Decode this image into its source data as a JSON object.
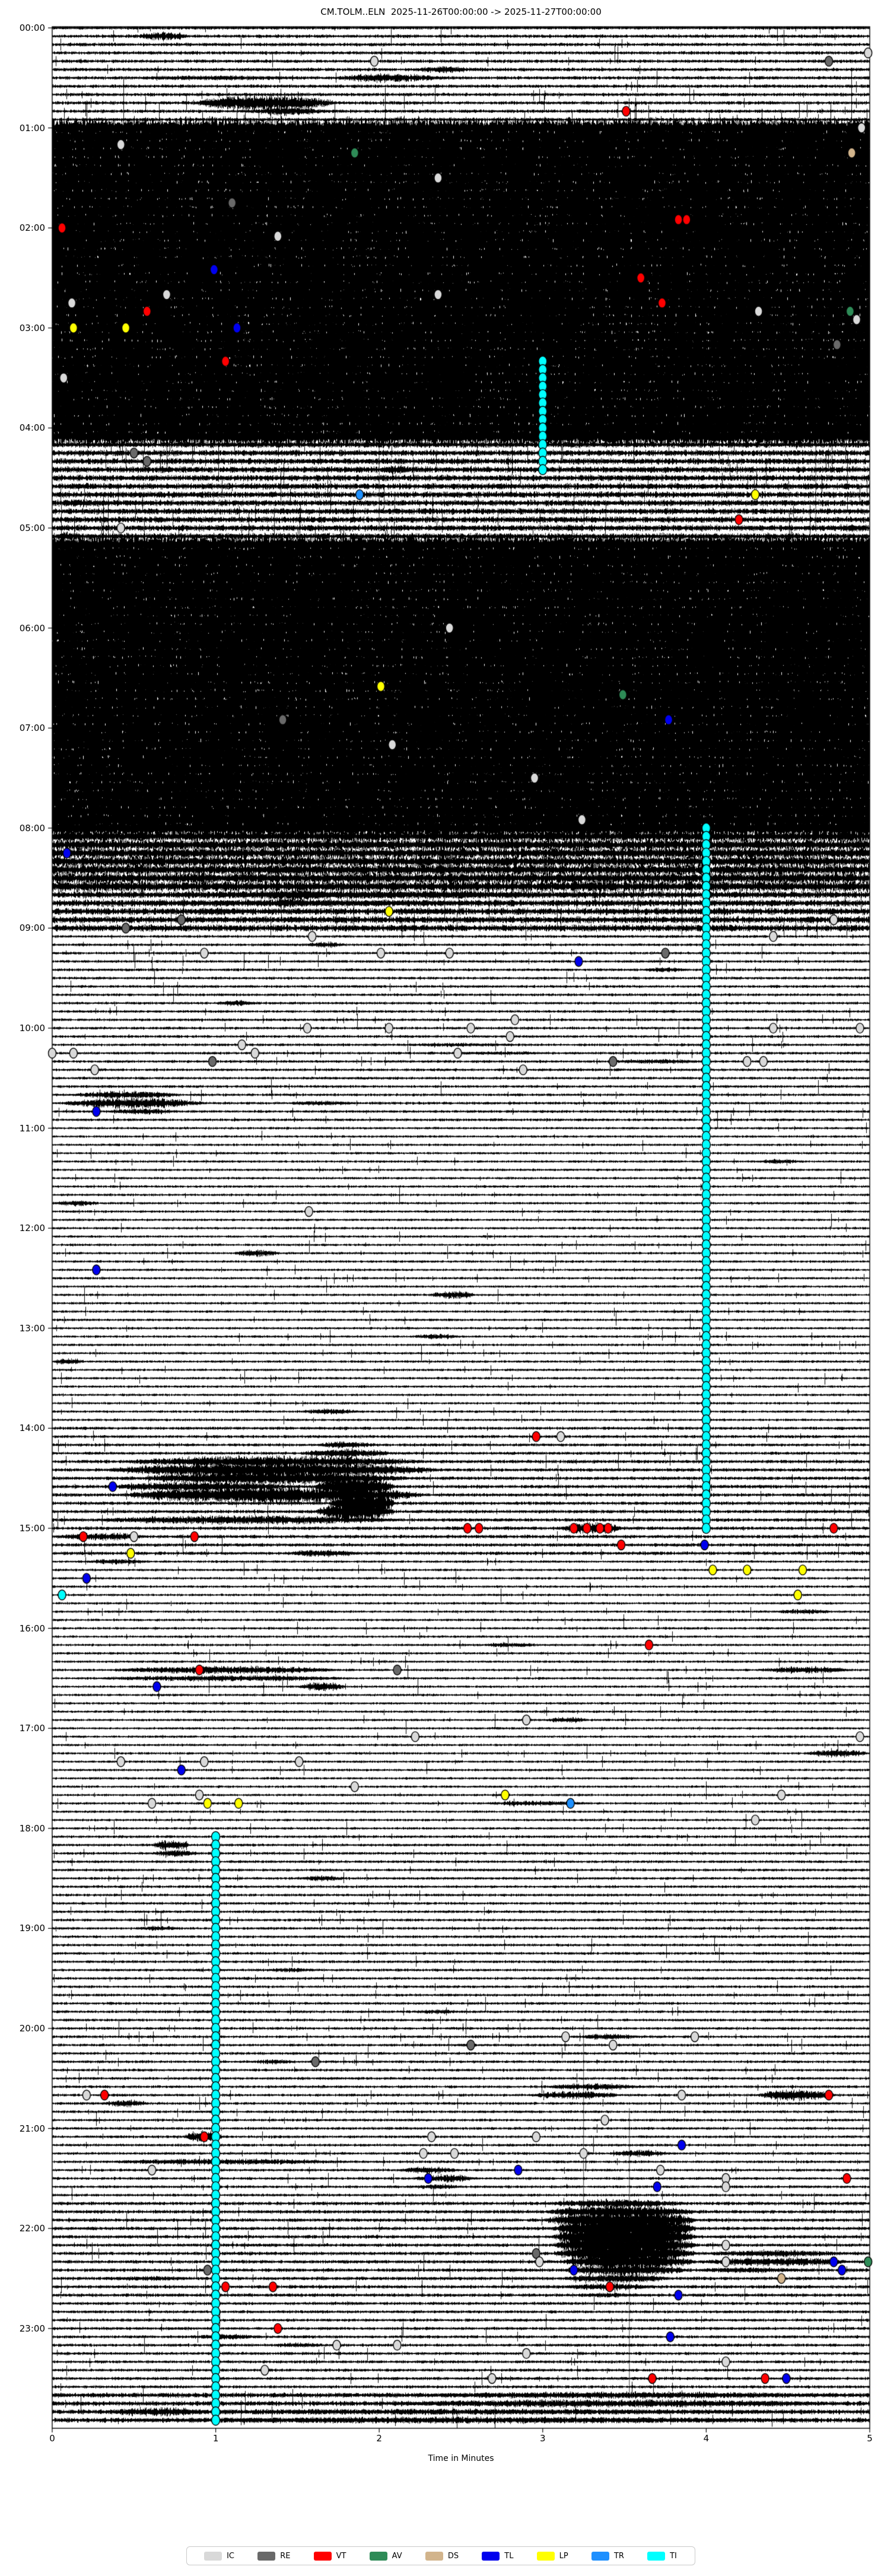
{
  "title": "CM.TOLM..ELN  2025-11-26T00:00:00 -> 2025-11-27T00:00:00",
  "xlabel": "Time in Minutes",
  "legend": [
    {
      "code": "IC",
      "color": "#d9d9d9"
    },
    {
      "code": "RE",
      "color": "#696969"
    },
    {
      "code": "VT",
      "color": "#ff0000"
    },
    {
      "code": "AV",
      "color": "#2e8b57"
    },
    {
      "code": "DS",
      "color": "#d2b48c"
    },
    {
      "code": "TL",
      "color": "#0000ee"
    },
    {
      "code": "LP",
      "color": "#ffff00"
    },
    {
      "code": "TR",
      "color": "#1e90ff"
    },
    {
      "code": "TI",
      "color": "#00ffff"
    }
  ],
  "chart_data": {
    "type": "helicorder",
    "station": "CM.TOLM..ELN",
    "time_start": "2025-11-26T00:00:00",
    "time_end": "2025-11-27T00:00:00",
    "minutes_per_line": 5,
    "lines_per_hour": 12,
    "total_lines": 288,
    "x_axis": {
      "label": "Time in Minutes",
      "min": 0,
      "max": 5,
      "ticks": [
        0,
        1,
        2,
        3,
        4,
        5
      ]
    },
    "y_axis": {
      "tick_labels": [
        "00:00",
        "01:00",
        "02:00",
        "03:00",
        "04:00",
        "05:00",
        "06:00",
        "07:00",
        "08:00",
        "09:00",
        "10:00",
        "11:00",
        "12:00",
        "13:00",
        "14:00",
        "15:00",
        "16:00",
        "17:00",
        "18:00",
        "19:00",
        "20:00",
        "21:00",
        "22:00",
        "23:00"
      ]
    },
    "trace_color": "#000000",
    "amp_segments": [
      [
        0,
        11,
        2.5
      ],
      [
        12,
        49,
        15
      ],
      [
        50,
        61,
        4.5
      ],
      [
        62,
        96,
        15
      ],
      [
        97,
        103,
        8
      ],
      [
        104,
        108,
        5
      ],
      [
        109,
        131,
        2
      ],
      [
        132,
        167,
        1.8
      ],
      [
        168,
        171,
        2.2
      ],
      [
        172,
        183,
        2.5
      ],
      [
        184,
        216,
        1.8
      ],
      [
        217,
        260,
        2
      ],
      [
        261,
        272,
        2.5
      ],
      [
        273,
        283,
        2.2
      ],
      [
        284,
        287,
        3.5
      ]
    ],
    "bursts": [
      [
        1,
        0.5,
        0.85,
        9
      ],
      [
        5,
        2.2,
        2.6,
        7
      ],
      [
        6,
        0.4,
        1.6,
        5
      ],
      [
        6,
        1.7,
        2.4,
        9
      ],
      [
        9,
        0.85,
        1.75,
        16
      ],
      [
        10,
        1.2,
        1.7,
        9
      ],
      [
        53,
        2.0,
        2.2,
        10
      ],
      [
        55,
        0.0,
        0.3,
        6
      ],
      [
        57,
        0.0,
        0.4,
        8
      ],
      [
        58,
        1.3,
        1.6,
        6
      ],
      [
        60,
        4.8,
        5.0,
        8
      ],
      [
        61,
        0.0,
        0.2,
        9
      ],
      [
        104,
        0.3,
        3.6,
        9
      ],
      [
        104,
        1.3,
        1.7,
        13
      ],
      [
        105,
        0.2,
        3.0,
        7
      ],
      [
        105,
        1.3,
        1.6,
        10
      ],
      [
        106,
        0.85,
        1.15,
        8
      ],
      [
        106,
        2.0,
        2.6,
        6
      ],
      [
        107,
        1.4,
        1.55,
        7
      ],
      [
        110,
        1.55,
        1.8,
        6
      ],
      [
        113,
        3.6,
        3.9,
        5
      ],
      [
        117,
        1.0,
        1.25,
        6
      ],
      [
        122,
        2.1,
        2.9,
        4
      ],
      [
        123,
        2.4,
        3.1,
        4
      ],
      [
        124,
        3.4,
        4.0,
        5
      ],
      [
        128,
        0.1,
        0.8,
        8
      ],
      [
        129,
        0.05,
        0.95,
        11
      ],
      [
        129,
        1.4,
        1.9,
        5
      ],
      [
        130,
        0.3,
        0.8,
        6
      ],
      [
        136,
        4.3,
        4.6,
        5
      ],
      [
        141,
        0.0,
        0.3,
        6
      ],
      [
        147,
        1.1,
        1.4,
        7
      ],
      [
        152,
        2.3,
        2.6,
        8
      ],
      [
        157,
        2.2,
        2.5,
        6
      ],
      [
        160,
        0.0,
        0.2,
        7
      ],
      [
        166,
        1.5,
        1.9,
        6
      ],
      [
        170,
        1.6,
        2.0,
        7
      ],
      [
        171,
        1.5,
        2.1,
        9
      ],
      [
        172,
        0.4,
        2.3,
        12
      ],
      [
        173,
        0.3,
        2.4,
        16
      ],
      [
        174,
        0.5,
        2.2,
        14
      ],
      [
        175,
        0.3,
        1.5,
        10
      ],
      [
        175,
        1.6,
        2.1,
        22
      ],
      [
        176,
        0.4,
        2.3,
        18
      ],
      [
        177,
        1.7,
        2.1,
        28
      ],
      [
        178,
        1.6,
        2.1,
        20
      ],
      [
        179,
        0.2,
        2.2,
        9
      ],
      [
        180,
        3.1,
        3.5,
        12
      ],
      [
        181,
        0.0,
        0.6,
        8
      ],
      [
        183,
        1.4,
        1.9,
        7
      ],
      [
        184,
        0.2,
        0.6,
        6
      ],
      [
        190,
        4.4,
        4.8,
        5
      ],
      [
        194,
        2.6,
        3.0,
        5
      ],
      [
        197,
        0.3,
        1.8,
        8
      ],
      [
        197,
        4.3,
        4.9,
        7
      ],
      [
        198,
        0.2,
        1.9,
        6
      ],
      [
        199,
        1.5,
        1.8,
        9
      ],
      [
        203,
        3.0,
        3.3,
        6
      ],
      [
        207,
        4.6,
        5.0,
        8
      ],
      [
        213,
        2.6,
        3.3,
        5
      ],
      [
        218,
        0.6,
        0.85,
        10
      ],
      [
        219,
        0.6,
        0.9,
        7
      ],
      [
        222,
        1.5,
        1.8,
        6
      ],
      [
        228,
        0.5,
        0.8,
        5
      ],
      [
        233,
        1.3,
        1.6,
        5
      ],
      [
        238,
        2.2,
        2.5,
        5
      ],
      [
        241,
        3.2,
        3.6,
        6
      ],
      [
        244,
        1.2,
        1.5,
        5
      ],
      [
        247,
        3.0,
        3.6,
        7
      ],
      [
        248,
        2.9,
        3.5,
        8
      ],
      [
        248,
        4.3,
        4.8,
        11
      ],
      [
        249,
        0.3,
        0.6,
        7
      ],
      [
        253,
        0.8,
        1.05,
        12
      ],
      [
        255,
        3.4,
        3.8,
        7
      ],
      [
        256,
        0.2,
        1.9,
        6
      ],
      [
        257,
        2.1,
        2.5,
        7
      ],
      [
        258,
        2.2,
        2.6,
        8
      ],
      [
        259,
        2.2,
        2.5,
        6
      ],
      [
        261,
        3.0,
        3.9,
        9
      ],
      [
        262,
        3.0,
        3.95,
        14
      ],
      [
        263,
        3.0,
        3.95,
        20
      ],
      [
        264,
        3.05,
        3.95,
        24
      ],
      [
        265,
        3.05,
        3.95,
        24
      ],
      [
        266,
        3.05,
        3.95,
        22
      ],
      [
        267,
        3.05,
        3.95,
        20
      ],
      [
        267,
        3.95,
        4.9,
        7
      ],
      [
        268,
        3.1,
        3.95,
        16
      ],
      [
        268,
        3.95,
        4.9,
        9
      ],
      [
        269,
        3.1,
        3.9,
        12
      ],
      [
        269,
        3.9,
        4.6,
        6
      ],
      [
        270,
        3.1,
        3.8,
        9
      ],
      [
        270,
        0.3,
        0.9,
        5
      ],
      [
        271,
        3.1,
        3.7,
        7
      ],
      [
        272,
        3.2,
        3.6,
        5
      ],
      [
        277,
        0.8,
        1.3,
        6
      ],
      [
        278,
        1.3,
        1.7,
        5
      ],
      [
        284,
        2.0,
        5.0,
        7
      ],
      [
        285,
        1.8,
        5.0,
        8
      ],
      [
        286,
        0.3,
        1.0,
        9
      ],
      [
        286,
        0.0,
        5.0,
        6
      ],
      [
        287,
        0.0,
        5.0,
        7
      ]
    ],
    "vlines": [
      [
        2.0,
        46,
        60
      ],
      [
        4.67,
        44,
        60
      ],
      [
        3.25,
        240,
        262
      ],
      [
        3.53,
        250,
        284
      ]
    ],
    "chains": [
      {
        "code": "TI",
        "minute": 3.0,
        "from_line": 40,
        "to_line": 53
      },
      {
        "code": "TI",
        "minute": 4.0,
        "from_line": 96,
        "to_line": 180
      },
      {
        "code": "TI",
        "minute": 1.0,
        "from_line": 217,
        "to_line": 287
      }
    ],
    "markers": [
      [
        "IC",
        3,
        4.99
      ],
      [
        "IC",
        4,
        1.97
      ],
      [
        "RE",
        4,
        4.75
      ],
      [
        "VT",
        10,
        3.51
      ],
      [
        "IC",
        12,
        4.95
      ],
      [
        "IC",
        14,
        0.42
      ],
      [
        "AV",
        15,
        1.85
      ],
      [
        "DS",
        15,
        4.89
      ],
      [
        "IC",
        18,
        2.36
      ],
      [
        "RE",
        21,
        1.1
      ],
      [
        "VT",
        23,
        3.83
      ],
      [
        "VT",
        23,
        3.88
      ],
      [
        "VT",
        24,
        0.06
      ],
      [
        "IC",
        25,
        1.38
      ],
      [
        "TL",
        29,
        0.99
      ],
      [
        "VT",
        30,
        3.6
      ],
      [
        "IC",
        32,
        0.7
      ],
      [
        "IC",
        32,
        2.36
      ],
      [
        "IC",
        33,
        0.12
      ],
      [
        "VT",
        33,
        3.73
      ],
      [
        "VT",
        34,
        0.58
      ],
      [
        "IC",
        34,
        4.32
      ],
      [
        "AV",
        34,
        4.88
      ],
      [
        "IC",
        35,
        4.92
      ],
      [
        "LP",
        36,
        0.13
      ],
      [
        "LP",
        36,
        0.45
      ],
      [
        "TL",
        36,
        1.13
      ],
      [
        "RE",
        38,
        4.8
      ],
      [
        "VT",
        40,
        1.06
      ],
      [
        "IC",
        42,
        0.07
      ],
      [
        "RE",
        51,
        0.5
      ],
      [
        "RE",
        52,
        0.58
      ],
      [
        "TR",
        56,
        1.88
      ],
      [
        "LP",
        56,
        4.3
      ],
      [
        "VT",
        59,
        4.2
      ],
      [
        "IC",
        60,
        0.42
      ],
      [
        "IC",
        72,
        2.43
      ],
      [
        "LP",
        79,
        2.01
      ],
      [
        "AV",
        80,
        3.49
      ],
      [
        "RE",
        83,
        1.41
      ],
      [
        "TL",
        83,
        3.77
      ],
      [
        "IC",
        86,
        2.08
      ],
      [
        "IC",
        90,
        2.95
      ],
      [
        "IC",
        95,
        3.24
      ],
      [
        "TL",
        99,
        0.09
      ],
      [
        "LP",
        106,
        2.06
      ],
      [
        "RE",
        107,
        0.79
      ],
      [
        "IC",
        107,
        4.78
      ],
      [
        "RE",
        108,
        0.45
      ],
      [
        "IC",
        109,
        1.59
      ],
      [
        "IC",
        109,
        4.41
      ],
      [
        "IC",
        111,
        0.93
      ],
      [
        "IC",
        111,
        2.01
      ],
      [
        "IC",
        111,
        2.43
      ],
      [
        "RE",
        111,
        3.75
      ],
      [
        "TL",
        112,
        3.22
      ],
      [
        "IC",
        119,
        2.83
      ],
      [
        "IC",
        120,
        1.56
      ],
      [
        "IC",
        120,
        2.06
      ],
      [
        "IC",
        120,
        2.56
      ],
      [
        "IC",
        120,
        4.41
      ],
      [
        "IC",
        120,
        4.94
      ],
      [
        "IC",
        121,
        2.8
      ],
      [
        "IC",
        122,
        1.16
      ],
      [
        "IC",
        123,
        0.0
      ],
      [
        "IC",
        123,
        0.13
      ],
      [
        "IC",
        123,
        1.24
      ],
      [
        "IC",
        123,
        2.48
      ],
      [
        "RE",
        124,
        0.98
      ],
      [
        "RE",
        124,
        3.43
      ],
      [
        "IC",
        124,
        4.25
      ],
      [
        "IC",
        124,
        4.35
      ],
      [
        "IC",
        125,
        0.26
      ],
      [
        "IC",
        125,
        2.88
      ],
      [
        "TL",
        130,
        0.27
      ],
      [
        "IC",
        142,
        1.57
      ],
      [
        "TL",
        149,
        0.27
      ],
      [
        "VT",
        169,
        2.96
      ],
      [
        "IC",
        169,
        3.11
      ],
      [
        "TL",
        175,
        0.37
      ],
      [
        "VT",
        180,
        2.54
      ],
      [
        "VT",
        180,
        2.61
      ],
      [
        "VT",
        180,
        3.19
      ],
      [
        "VT",
        180,
        3.27
      ],
      [
        "VT",
        180,
        3.35
      ],
      [
        "VT",
        180,
        3.4
      ],
      [
        "VT",
        180,
        4.78
      ],
      [
        "VT",
        181,
        0.19
      ],
      [
        "IC",
        181,
        0.5
      ],
      [
        "VT",
        181,
        0.87
      ],
      [
        "VT",
        182,
        3.48
      ],
      [
        "TL",
        182,
        3.99
      ],
      [
        "LP",
        183,
        0.48
      ],
      [
        "LP",
        185,
        4.04
      ],
      [
        "LP",
        185,
        4.25
      ],
      [
        "LP",
        185,
        4.59
      ],
      [
        "TL",
        186,
        0.21
      ],
      [
        "TI",
        188,
        0.06
      ],
      [
        "LP",
        188,
        4.56
      ],
      [
        "VT",
        194,
        3.65
      ],
      [
        "VT",
        197,
        0.9
      ],
      [
        "RE",
        197,
        2.11
      ],
      [
        "TL",
        199,
        0.64
      ],
      [
        "IC",
        203,
        2.9
      ],
      [
        "IC",
        205,
        2.22
      ],
      [
        "IC",
        205,
        4.94
      ],
      [
        "IC",
        208,
        0.42
      ],
      [
        "IC",
        208,
        0.93
      ],
      [
        "IC",
        208,
        1.51
      ],
      [
        "TL",
        209,
        0.79
      ],
      [
        "IC",
        211,
        1.85
      ],
      [
        "IC",
        212,
        0.9
      ],
      [
        "LP",
        212,
        2.77
      ],
      [
        "IC",
        212,
        4.46
      ],
      [
        "IC",
        213,
        0.61
      ],
      [
        "LP",
        213,
        0.95
      ],
      [
        "LP",
        213,
        1.14
      ],
      [
        "TR",
        213,
        3.17
      ],
      [
        "IC",
        215,
        4.3
      ],
      [
        "IC",
        241,
        3.14
      ],
      [
        "IC",
        241,
        3.93
      ],
      [
        "RE",
        242,
        2.56
      ],
      [
        "IC",
        242,
        3.43
      ],
      [
        "RE",
        244,
        1.61
      ],
      [
        "IC",
        248,
        0.21
      ],
      [
        "VT",
        248,
        0.32
      ],
      [
        "IC",
        248,
        3.85
      ],
      [
        "VT",
        248,
        4.75
      ],
      [
        "IC",
        251,
        3.38
      ],
      [
        "VT",
        253,
        0.93
      ],
      [
        "IC",
        253,
        2.32
      ],
      [
        "IC",
        253,
        2.96
      ],
      [
        "TL",
        254,
        3.85
      ],
      [
        "IC",
        255,
        2.27
      ],
      [
        "IC",
        255,
        2.46
      ],
      [
        "IC",
        255,
        3.25
      ],
      [
        "IC",
        257,
        0.61
      ],
      [
        "TL",
        257,
        2.85
      ],
      [
        "IC",
        257,
        3.72
      ],
      [
        "TL",
        258,
        2.3
      ],
      [
        "IC",
        258,
        4.12
      ],
      [
        "VT",
        258,
        4.86
      ],
      [
        "TL",
        259,
        3.7
      ],
      [
        "IC",
        259,
        4.12
      ],
      [
        "IC",
        266,
        4.12
      ],
      [
        "RE",
        267,
        2.96
      ],
      [
        "IC",
        268,
        2.98
      ],
      [
        "IC",
        268,
        4.12
      ],
      [
        "TL",
        268,
        4.78
      ],
      [
        "AV",
        268,
        4.99
      ],
      [
        "RE",
        269,
        0.95
      ],
      [
        "TL",
        269,
        3.19
      ],
      [
        "TL",
        269,
        4.83
      ],
      [
        "DS",
        270,
        4.46
      ],
      [
        "VT",
        271,
        1.06
      ],
      [
        "VT",
        271,
        1.35
      ],
      [
        "VT",
        271,
        3.41
      ],
      [
        "TL",
        272,
        3.83
      ],
      [
        "VT",
        276,
        1.38
      ],
      [
        "TL",
        277,
        3.78
      ],
      [
        "IC",
        278,
        1.74
      ],
      [
        "IC",
        278,
        2.11
      ],
      [
        "IC",
        279,
        2.9
      ],
      [
        "IC",
        280,
        4.12
      ],
      [
        "IC",
        281,
        1.3
      ],
      [
        "IC",
        282,
        2.69
      ],
      [
        "VT",
        282,
        3.67
      ],
      [
        "VT",
        282,
        4.36
      ],
      [
        "TL",
        282,
        4.49
      ]
    ]
  }
}
